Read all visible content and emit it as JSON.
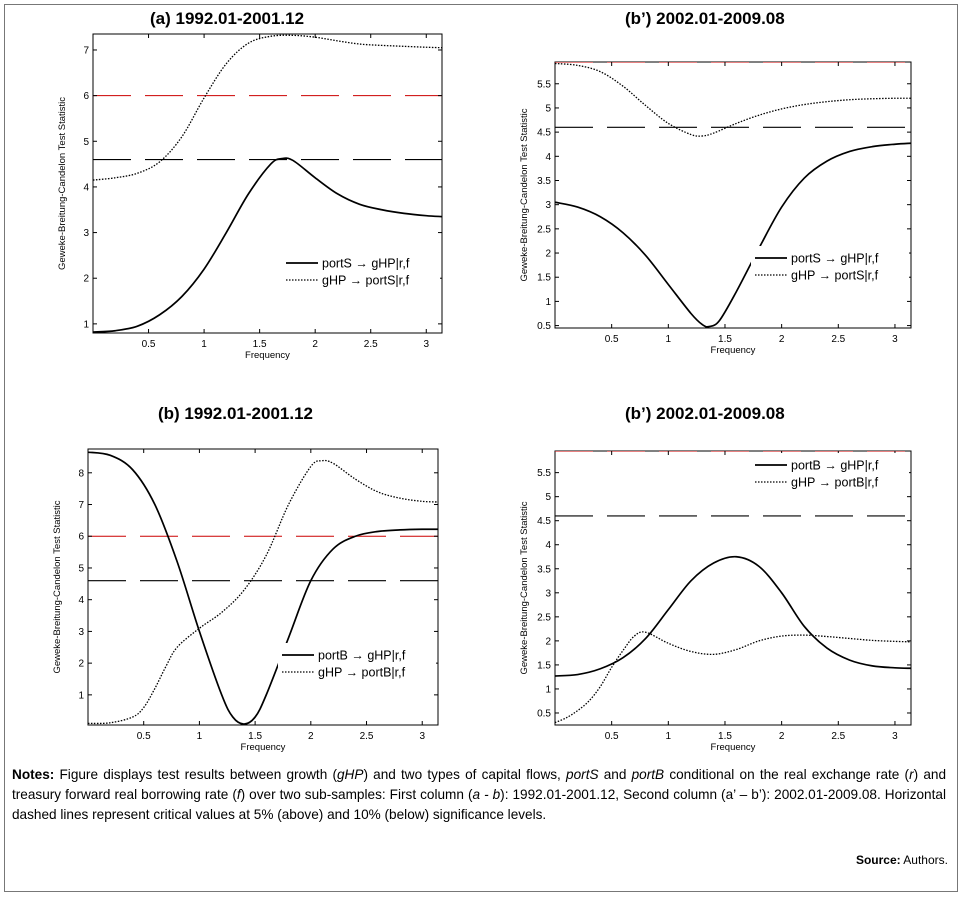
{
  "chart_data": [
    {
      "type": "line",
      "title": "(a) 1992.01-2001.12",
      "xlabel": "Frequency",
      "ylabel": "Geweke-Breitung-Candelon Test Statistic",
      "xlim": [
        0,
        3.1416
      ],
      "ylim": [
        0.8,
        7.35
      ],
      "xticks": [
        "0.5",
        "1",
        "1.5",
        "2",
        "2.5",
        "3"
      ],
      "yticks": [
        "1",
        "2",
        "3",
        "4",
        "5",
        "6",
        "7"
      ],
      "legend_position": "lower-right",
      "critical_values": [
        {
          "value": 6.0,
          "color": "#cc0000"
        },
        {
          "value": 4.6,
          "color": "#000000"
        }
      ],
      "series": [
        {
          "name": "portS → gHP|r,f",
          "style": "solid",
          "x": [
            0,
            0.2,
            0.4,
            0.6,
            0.8,
            1.0,
            1.2,
            1.4,
            1.6,
            1.7,
            1.8,
            2.0,
            2.2,
            2.4,
            2.6,
            2.8,
            3.0,
            3.14
          ],
          "y": [
            0.82,
            0.85,
            0.95,
            1.2,
            1.6,
            2.2,
            3.0,
            3.85,
            4.5,
            4.62,
            4.58,
            4.2,
            3.85,
            3.62,
            3.5,
            3.42,
            3.37,
            3.35
          ]
        },
        {
          "name": "gHP → portS|r,f",
          "style": "dotted",
          "x": [
            0,
            0.2,
            0.4,
            0.6,
            0.8,
            1.0,
            1.2,
            1.4,
            1.6,
            1.8,
            2.0,
            2.2,
            2.4,
            2.6,
            2.8,
            3.0,
            3.14
          ],
          "y": [
            4.15,
            4.2,
            4.3,
            4.55,
            5.1,
            5.95,
            6.7,
            7.15,
            7.3,
            7.32,
            7.28,
            7.2,
            7.13,
            7.1,
            7.08,
            7.06,
            7.05
          ]
        }
      ]
    },
    {
      "type": "line",
      "title": "(b’) 2002.01-2009.08",
      "xlabel": "Frequency",
      "ylabel": "Geweke-Breitung-Candelon Test Statistic",
      "xlim": [
        0,
        3.1416
      ],
      "ylim": [
        0.45,
        5.95
      ],
      "xticks": [
        "0.5",
        "1",
        "1.5",
        "2",
        "2.5",
        "3"
      ],
      "yticks": [
        "0.5",
        "1",
        "1.5",
        "2",
        "2.5",
        "3",
        "3.5",
        "4",
        "4.5",
        "5",
        "5.5"
      ],
      "legend_position": "lower-right",
      "critical_values": [
        {
          "value": 5.95,
          "color": "#cc0000"
        },
        {
          "value": 4.6,
          "color": "#000000"
        }
      ],
      "series": [
        {
          "name": "portS → gHP|r,f",
          "style": "solid",
          "x": [
            0,
            0.2,
            0.4,
            0.6,
            0.8,
            1.0,
            1.2,
            1.3,
            1.36,
            1.45,
            1.6,
            1.8,
            2.0,
            2.2,
            2.4,
            2.6,
            2.8,
            3.0,
            3.14
          ],
          "y": [
            3.05,
            2.95,
            2.75,
            2.42,
            1.95,
            1.35,
            0.75,
            0.52,
            0.48,
            0.6,
            1.2,
            2.1,
            2.95,
            3.55,
            3.9,
            4.1,
            4.2,
            4.25,
            4.27
          ]
        },
        {
          "name": "gHP → portS|r,f",
          "style": "dotted",
          "x": [
            0,
            0.2,
            0.4,
            0.6,
            0.8,
            1.0,
            1.2,
            1.3,
            1.4,
            1.6,
            1.8,
            2.0,
            2.2,
            2.4,
            2.6,
            2.8,
            3.0,
            3.14
          ],
          "y": [
            5.92,
            5.88,
            5.75,
            5.45,
            5.05,
            4.68,
            4.45,
            4.42,
            4.48,
            4.68,
            4.85,
            4.98,
            5.07,
            5.13,
            5.17,
            5.19,
            5.2,
            5.2
          ]
        }
      ]
    },
    {
      "type": "line",
      "title": "(b) 1992.01-2001.12",
      "xlabel": "Frequency",
      "ylabel": "Geweke-Breitung-Candelon Test Statistic",
      "xlim": [
        0,
        3.1416
      ],
      "ylim": [
        0.05,
        8.75
      ],
      "xticks": [
        "0.5",
        "1",
        "1.5",
        "2",
        "2.5",
        "3"
      ],
      "yticks": [
        "1",
        "2",
        "3",
        "4",
        "5",
        "6",
        "7",
        "8"
      ],
      "legend_position": "lower-right",
      "critical_values": [
        {
          "value": 6.0,
          "color": "#cc0000"
        },
        {
          "value": 4.6,
          "color": "#000000"
        }
      ],
      "series": [
        {
          "name": "portB → gHP|r,f",
          "style": "solid",
          "x": [
            0,
            0.2,
            0.4,
            0.6,
            0.8,
            1.0,
            1.2,
            1.3,
            1.4,
            1.5,
            1.6,
            1.8,
            2.0,
            2.2,
            2.4,
            2.6,
            2.8,
            3.0,
            3.14
          ],
          "y": [
            8.65,
            8.55,
            8.1,
            7.0,
            5.2,
            3.0,
            1.0,
            0.3,
            0.08,
            0.3,
            1.0,
            2.8,
            4.6,
            5.6,
            6.0,
            6.15,
            6.2,
            6.22,
            6.22
          ]
        },
        {
          "name": "gHP → portB|r,f",
          "style": "dotted",
          "x": [
            0,
            0.2,
            0.4,
            0.5,
            0.6,
            0.7,
            0.8,
            1.0,
            1.2,
            1.4,
            1.6,
            1.8,
            2.0,
            2.1,
            2.2,
            2.4,
            2.6,
            2.8,
            3.0,
            3.14
          ],
          "y": [
            0.1,
            0.12,
            0.3,
            0.6,
            1.2,
            1.9,
            2.5,
            3.1,
            3.6,
            4.3,
            5.4,
            7.0,
            8.2,
            8.38,
            8.3,
            7.8,
            7.4,
            7.2,
            7.1,
            7.08
          ]
        }
      ]
    },
    {
      "type": "line",
      "title": "(b’) 2002.01-2009.08",
      "xlabel": "Frequency",
      "ylabel": "Geweke-Breitung-Candelon Test Statistic",
      "xlim": [
        0,
        3.1416
      ],
      "ylim": [
        0.25,
        5.95
      ],
      "xticks": [
        "0.5",
        "1",
        "1.5",
        "2",
        "2.5",
        "3"
      ],
      "yticks": [
        "0.5",
        "1",
        "1.5",
        "2",
        "2.5",
        "3",
        "3.5",
        "4",
        "4.5",
        "5",
        "5.5"
      ],
      "legend_position": "top-right",
      "critical_values": [
        {
          "value": 5.95,
          "color": "#cc0000"
        },
        {
          "value": 4.6,
          "color": "#000000"
        }
      ],
      "series": [
        {
          "name": "portB → gHP|r,f",
          "style": "solid",
          "x": [
            0,
            0.2,
            0.4,
            0.6,
            0.8,
            1.0,
            1.2,
            1.4,
            1.6,
            1.8,
            2.0,
            2.2,
            2.4,
            2.6,
            2.8,
            3.0,
            3.14
          ],
          "y": [
            1.27,
            1.3,
            1.42,
            1.65,
            2.05,
            2.65,
            3.25,
            3.62,
            3.75,
            3.55,
            3.0,
            2.3,
            1.85,
            1.6,
            1.48,
            1.44,
            1.43
          ]
        },
        {
          "name": "gHP → portB|r,f",
          "style": "dotted",
          "x": [
            0,
            0.1,
            0.2,
            0.3,
            0.4,
            0.5,
            0.6,
            0.7,
            0.8,
            1.0,
            1.2,
            1.4,
            1.6,
            1.8,
            2.0,
            2.2,
            2.4,
            2.6,
            2.8,
            3.0,
            3.14
          ],
          "y": [
            0.3,
            0.4,
            0.55,
            0.75,
            1.05,
            1.45,
            1.8,
            2.1,
            2.18,
            1.95,
            1.78,
            1.72,
            1.82,
            2.0,
            2.1,
            2.12,
            2.09,
            2.05,
            2.01,
            1.99,
            1.98
          ]
        }
      ]
    }
  ],
  "notes": {
    "label": "Notes:",
    "t1": " Figure displays test results between growth (",
    "gHP": "gHP",
    "t2": ") and two types of capital flows, ",
    "portS": "portS",
    "t3": " and ",
    "portB": "portB",
    "t4": " conditional on the real exchange rate (",
    "r": "r",
    "t5": ") and treasury forward real borrowing rate (",
    "f": "f",
    "t6": ") over two sub-samples: First column (",
    "ab": "a - b",
    "t7": "): 1992.01-2001.12, Second column (a’ – b’): 2002.01-2009.08. Horizontal dashed lines represent critical values at 5% (above) and 10% (below) significance levels."
  },
  "source": {
    "label": "Source:",
    "text": " Authors."
  }
}
